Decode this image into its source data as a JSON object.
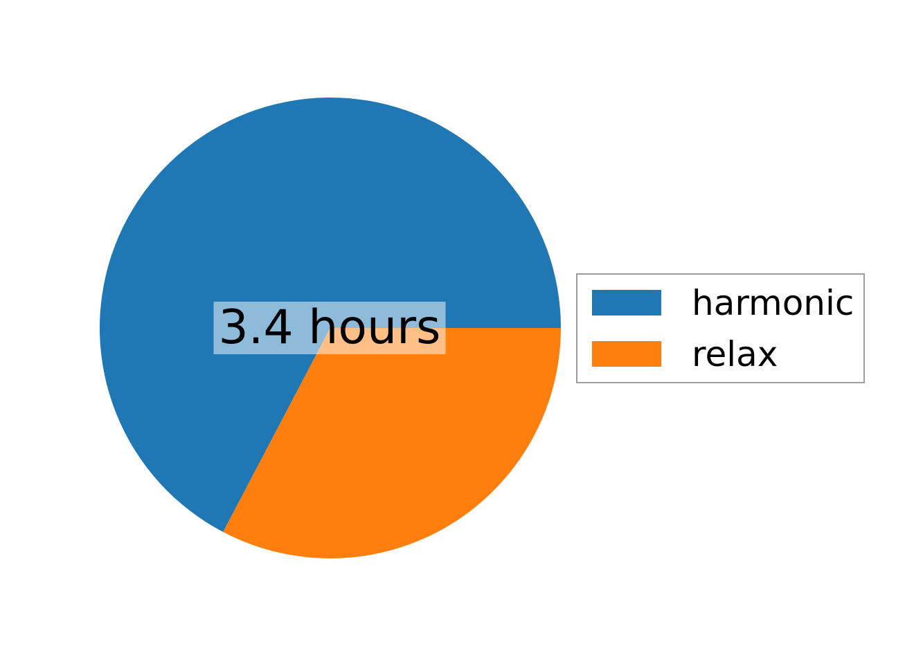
{
  "figure": {
    "background_color": "#ffffff"
  },
  "chart_data": {
    "type": "pie",
    "title": "",
    "labels": [
      "harmonic",
      "relax"
    ],
    "values": [
      7.0,
      3.4
    ],
    "unit": "hours",
    "colors": [
      "#1f77b4",
      "#ff7f0e"
    ],
    "start_angle_deg": 0,
    "counterclockwise": true,
    "center_label": "3.4 hours",
    "center_label_background": "rgba(255,255,255,0.5)",
    "legend": {
      "position": "center right",
      "entries": [
        "harmonic",
        "relax"
      ]
    }
  }
}
